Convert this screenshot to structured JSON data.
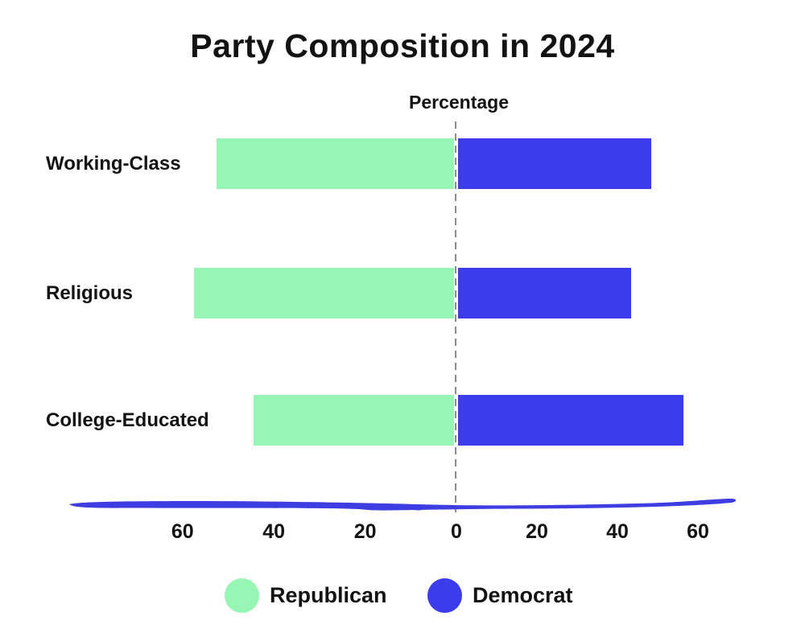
{
  "title": "Party Composition in 2024",
  "chart_data": {
    "type": "bar",
    "variant": "diverging-horizontal",
    "title": "Party Composition in 2024",
    "xlabel": "Percentage",
    "categories": [
      "Working-Class",
      "Religious",
      "College-Educated"
    ],
    "series": [
      {
        "name": "Republican",
        "direction": "left",
        "color": "#97F6B3",
        "values": [
          52,
          57,
          44
        ]
      },
      {
        "name": "Democrat",
        "direction": "right",
        "color": "#3C3CEC",
        "values": [
          48,
          43,
          56
        ]
      }
    ],
    "x_ticks": [
      {
        "value": -60,
        "label": "60"
      },
      {
        "value": -40,
        "label": "40"
      },
      {
        "value": -20,
        "label": "20"
      },
      {
        "value": 0,
        "label": "0"
      },
      {
        "value": 20,
        "label": "20"
      },
      {
        "value": 40,
        "label": "40"
      },
      {
        "value": 60,
        "label": "60"
      }
    ],
    "xlim": [
      -70,
      70
    ],
    "grid": false,
    "zero_line_style": "dashed-gray",
    "axis_line_style": "hand-drawn-blue",
    "legend_position": "bottom"
  },
  "legend": {
    "items": [
      {
        "label": "Republican",
        "color": "#97F6B3"
      },
      {
        "label": "Democrat",
        "color": "#3C3CEC"
      }
    ]
  },
  "colors": {
    "republican": "#97F6B3",
    "democrat": "#3C3CEC",
    "axis_stroke": "#3D3DE1",
    "zero_line": "#8C8C8C",
    "text": "#131313",
    "background": "#FFFFFF"
  }
}
